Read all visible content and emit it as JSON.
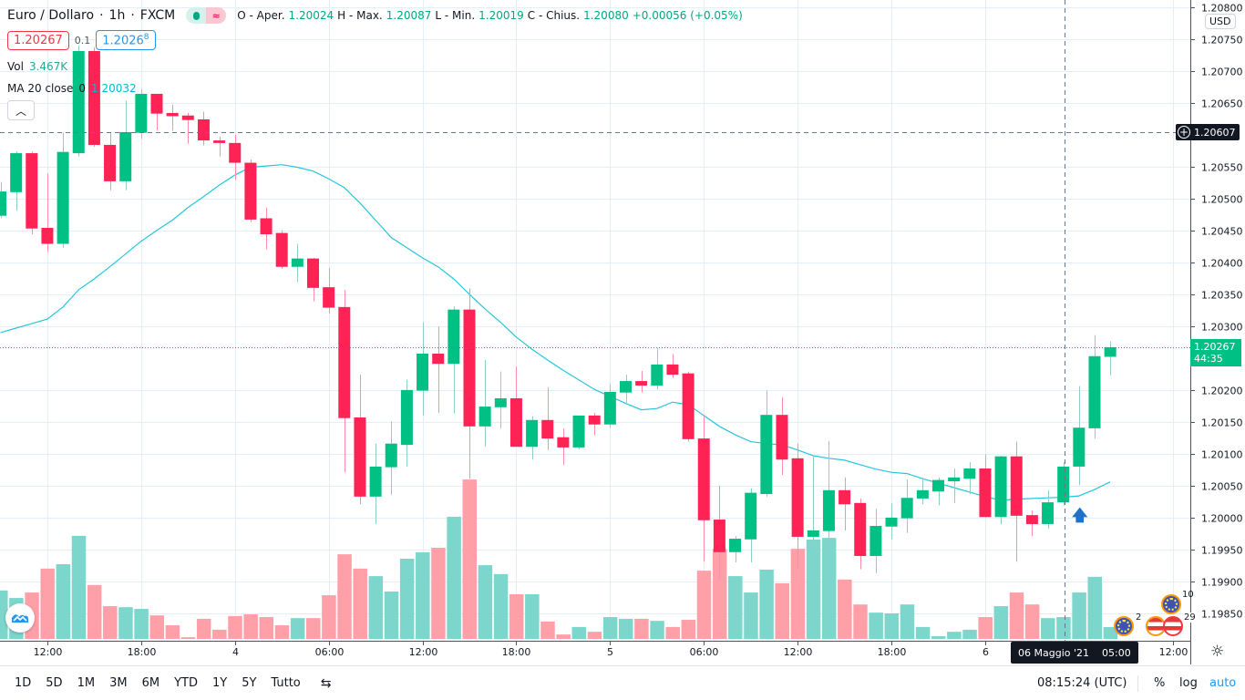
{
  "header": {
    "symbol": "Euro / Dollaro",
    "interval": "1h",
    "source": "FXCM",
    "ohlc": [
      {
        "label": "O - Aper.",
        "value": "1.20024"
      },
      {
        "label": "H - Max.",
        "value": "1.20087"
      },
      {
        "label": "L - Min.",
        "value": "1.20019"
      },
      {
        "label": "C - Chius.",
        "value": "1.20080"
      }
    ],
    "change": "+0.00056 (+0.05%)"
  },
  "quote": {
    "bid": "1.20267",
    "spread": "0.1",
    "ask_main": "1.2026",
    "ask_sup": "8"
  },
  "indicators": {
    "vol_label": "Vol",
    "vol_value": "3.467K",
    "ma_label": "MA 20 close",
    "ma_offset": "0",
    "ma_value": "1.20032"
  },
  "price_axis": {
    "currency": "USD",
    "crosshair_price": "1.20607",
    "last_price": "1.20267",
    "countdown": "44:35"
  },
  "time_axis": {
    "crosshair_date": "06 Maggio '21",
    "crosshair_time": "05:00"
  },
  "events": [
    {
      "type": "eu-flag-icon",
      "count": "2"
    },
    {
      "type": "eu-flag-icon",
      "count": "10"
    },
    {
      "type": "us-flag-icon",
      "count": ""
    },
    {
      "type": "us-flag-icon",
      "count": "29"
    }
  ],
  "toolbar": {
    "ranges": [
      "1D",
      "5D",
      "1M",
      "3M",
      "6M",
      "YTD",
      "1Y",
      "5Y",
      "Tutto"
    ],
    "clock": "08:15:24 (UTC)",
    "percent": "%",
    "log": "log",
    "auto": "auto"
  },
  "colors": {
    "up": "#00c084",
    "down": "#ff2255",
    "vol_up": "#7dd6cc",
    "vol_down": "#ffa0a8",
    "ma": "#26c6da",
    "grid": "#e6eef5",
    "accent": "#2196f3"
  },
  "chart_data": {
    "type": "candlestick",
    "ylim": [
      1.1981,
      1.20811
    ],
    "grid": true,
    "y_ticks": [
      "1.20800",
      "1.20750",
      "1.20700",
      "1.20650",
      "1.20550",
      "1.20500",
      "1.20450",
      "1.20400",
      "1.20350",
      "1.20300",
      "1.20200",
      "1.20150",
      "1.20100",
      "1.20050",
      "1.20000",
      "1.19950",
      "1.19900",
      "1.19850"
    ],
    "x_ticks": [
      {
        "label": "12:00",
        "time": "2021-05-03 12:00"
      },
      {
        "label": "18:00",
        "time": "2021-05-03 18:00"
      },
      {
        "label": "4",
        "time": "2021-05-04 00:00"
      },
      {
        "label": "06:00",
        "time": "2021-05-04 06:00"
      },
      {
        "label": "12:00",
        "time": "2021-05-04 12:00"
      },
      {
        "label": "18:00",
        "time": "2021-05-04 18:00"
      },
      {
        "label": "5",
        "time": "2021-05-05 00:00"
      },
      {
        "label": "06:00",
        "time": "2021-05-05 06:00"
      },
      {
        "label": "12:00",
        "time": "2021-05-05 12:00"
      },
      {
        "label": "18:00",
        "time": "2021-05-05 18:00"
      },
      {
        "label": "6",
        "time": "2021-05-06 00:00"
      },
      {
        "label": "12:00",
        "time": "2021-05-06 12:00"
      }
    ],
    "columns": [
      "time",
      "open",
      "high",
      "low",
      "close",
      "volume_k",
      "ma20"
    ],
    "candles": [
      [
        "2021-05-03 09:00",
        1.20473,
        1.20526,
        1.20469,
        1.20511,
        14.2,
        1.2029
      ],
      [
        "2021-05-03 10:00",
        1.2051,
        1.20574,
        1.20481,
        1.20571,
        12.0,
        1.20297
      ],
      [
        "2021-05-03 11:00",
        1.20571,
        1.20574,
        1.20444,
        1.20453,
        13.6,
        1.20304
      ],
      [
        "2021-05-03 12:00",
        1.20454,
        1.20539,
        1.20416,
        1.20429,
        20.6,
        1.20311
      ],
      [
        "2021-05-03 13:00",
        1.20429,
        1.20603,
        1.20423,
        1.20573,
        21.9,
        1.2033
      ],
      [
        "2021-05-03 14:00",
        1.20571,
        1.2074,
        1.20566,
        1.20731,
        30.2,
        1.20357
      ],
      [
        "2021-05-03 15:00",
        1.20731,
        1.20737,
        1.20581,
        1.20584,
        15.8,
        1.20374
      ],
      [
        "2021-05-03 16:00",
        1.20584,
        1.20603,
        1.20513,
        1.20527,
        9.6,
        1.20393
      ],
      [
        "2021-05-03 17:00",
        1.20527,
        1.20653,
        1.20513,
        1.20604,
        9.3,
        1.20413
      ],
      [
        "2021-05-03 18:00",
        1.20603,
        1.20671,
        1.20593,
        1.20664,
        8.8,
        1.20433
      ],
      [
        "2021-05-03 19:00",
        1.20664,
        1.20664,
        1.20607,
        1.20633,
        6.9,
        1.2045
      ],
      [
        "2021-05-03 20:00",
        1.20634,
        1.20647,
        1.20606,
        1.20629,
        4.0,
        1.20466
      ],
      [
        "2021-05-03 21:00",
        1.2063,
        1.20634,
        1.20586,
        1.20623,
        0.5,
        1.20486
      ],
      [
        "2021-05-03 22:00",
        1.20624,
        1.20636,
        1.20583,
        1.20591,
        5.9,
        1.20503
      ],
      [
        "2021-05-03 23:00",
        1.20591,
        1.20597,
        1.20566,
        1.20587,
        2.7,
        1.20521
      ],
      [
        "2021-05-04 00:00",
        1.20587,
        1.206,
        1.20529,
        1.20556,
        6.7,
        1.20537
      ],
      [
        "2021-05-04 01:00",
        1.20556,
        1.20561,
        1.20463,
        1.20467,
        7.2,
        1.20549
      ],
      [
        "2021-05-04 02:00",
        1.20469,
        1.20486,
        1.2042,
        1.20444,
        6.4,
        1.20551
      ],
      [
        "2021-05-04 03:00",
        1.20446,
        1.2045,
        1.2039,
        1.20393,
        4.0,
        1.20553
      ],
      [
        "2021-05-04 04:00",
        1.20393,
        1.20429,
        1.20369,
        1.20406,
        6.1,
        1.20549
      ],
      [
        "2021-05-04 05:00",
        1.20406,
        1.20407,
        1.20339,
        1.2036,
        6.1,
        1.20543
      ],
      [
        "2021-05-04 06:00",
        1.20361,
        1.20391,
        1.2032,
        1.20329,
        12.8,
        1.20531
      ],
      [
        "2021-05-04 07:00",
        1.2033,
        1.20357,
        1.20071,
        1.20156,
        24.8,
        1.20517
      ],
      [
        "2021-05-04 08:00",
        1.20157,
        1.20224,
        1.20021,
        1.20033,
        20.6,
        1.20493
      ],
      [
        "2021-05-04 09:00",
        1.20033,
        1.20116,
        1.1999,
        1.2008,
        18.4,
        1.20466
      ],
      [
        "2021-05-04 10:00",
        1.20079,
        1.20151,
        1.20036,
        1.20116,
        13.9,
        1.20439
      ],
      [
        "2021-05-04 11:00",
        1.20114,
        1.20216,
        1.2008,
        1.202,
        23.5,
        1.20423
      ],
      [
        "2021-05-04 12:00",
        1.20199,
        1.20306,
        1.2016,
        1.20257,
        25.4,
        1.20407
      ],
      [
        "2021-05-04 13:00",
        1.20257,
        1.20299,
        1.20164,
        1.20241,
        26.7,
        1.20393
      ],
      [
        "2021-05-04 14:00",
        1.20241,
        1.20331,
        1.20164,
        1.20326,
        35.8,
        1.20374
      ],
      [
        "2021-05-04 15:00",
        1.20326,
        1.20359,
        1.20061,
        1.20143,
        46.7,
        1.2035
      ],
      [
        "2021-05-04 16:00",
        1.20143,
        1.20247,
        1.20111,
        1.20174,
        21.6,
        1.20327
      ],
      [
        "2021-05-04 17:00",
        1.20173,
        1.20229,
        1.2014,
        1.20187,
        19.0,
        1.20306
      ],
      [
        "2021-05-04 18:00",
        1.20187,
        1.20237,
        1.20111,
        1.20111,
        13.1,
        1.20283
      ],
      [
        "2021-05-04 19:00",
        1.20111,
        1.20159,
        1.20091,
        1.20153,
        13.1,
        1.20264
      ],
      [
        "2021-05-04 20:00",
        1.20153,
        1.20204,
        1.20106,
        1.20124,
        5.1,
        1.20247
      ],
      [
        "2021-05-04 21:00",
        1.20126,
        1.2014,
        1.20083,
        1.2011,
        1.3,
        1.20231
      ],
      [
        "2021-05-04 22:00",
        1.2011,
        1.2016,
        1.20107,
        1.2016,
        3.5,
        1.20216
      ],
      [
        "2021-05-04 23:00",
        1.2016,
        1.20164,
        1.20129,
        1.20146,
        2.1,
        1.20201
      ],
      [
        "2021-05-05 00:00",
        1.20146,
        1.20209,
        1.20141,
        1.20197,
        6.4,
        1.2019
      ],
      [
        "2021-05-05 01:00",
        1.20196,
        1.20224,
        1.2018,
        1.20214,
        5.9,
        1.20179
      ],
      [
        "2021-05-05 02:00",
        1.20214,
        1.2023,
        1.20196,
        1.20207,
        5.9,
        1.20169
      ],
      [
        "2021-05-05 03:00",
        1.20207,
        1.20266,
        1.20201,
        1.2024,
        5.3,
        1.20171
      ],
      [
        "2021-05-05 04:00",
        1.2024,
        1.20256,
        1.20219,
        1.20224,
        3.5,
        1.20181
      ],
      [
        "2021-05-05 05:00",
        1.20226,
        1.20229,
        1.20119,
        1.20123,
        5.6,
        1.20177
      ],
      [
        "2021-05-05 06:00",
        1.20124,
        1.20161,
        1.19931,
        1.19996,
        20.0,
        1.2016
      ],
      [
        "2021-05-05 07:00",
        1.19997,
        1.2005,
        1.19904,
        1.19946,
        26.4,
        1.20143
      ],
      [
        "2021-05-05 08:00",
        1.19946,
        1.19971,
        1.1993,
        1.19967,
        18.4,
        1.2013
      ],
      [
        "2021-05-05 09:00",
        1.19966,
        1.20046,
        1.1993,
        1.20039,
        13.6,
        1.20119
      ],
      [
        "2021-05-05 10:00",
        1.20037,
        1.20199,
        1.20033,
        1.20161,
        20.3,
        1.20116
      ],
      [
        "2021-05-05 11:00",
        1.20161,
        1.20189,
        1.20067,
        1.20091,
        16.3,
        1.20114
      ],
      [
        "2021-05-05 12:00",
        1.20093,
        1.20116,
        1.19919,
        1.1997,
        26.4,
        1.20106
      ],
      [
        "2021-05-05 13:00",
        1.1997,
        1.20097,
        1.19947,
        1.1998,
        29.1,
        1.20097
      ],
      [
        "2021-05-05 14:00",
        1.19979,
        1.2012,
        1.19937,
        1.20043,
        29.6,
        1.20093
      ],
      [
        "2021-05-05 15:00",
        1.20043,
        1.20063,
        1.1998,
        1.20021,
        17.4,
        1.2009
      ],
      [
        "2021-05-05 16:00",
        1.20023,
        1.2003,
        1.19919,
        1.1994,
        10.1,
        1.20083
      ],
      [
        "2021-05-05 17:00",
        1.1994,
        1.20014,
        1.19913,
        1.19987,
        7.7,
        1.20076
      ],
      [
        "2021-05-05 18:00",
        1.19986,
        1.20023,
        1.19966,
        1.2,
        7.5,
        1.20071
      ],
      [
        "2021-05-05 19:00",
        1.19999,
        1.2006,
        1.19976,
        1.20031,
        10.1,
        1.20069
      ],
      [
        "2021-05-05 20:00",
        1.2003,
        1.20063,
        1.20021,
        1.20043,
        3.5,
        1.20061
      ],
      [
        "2021-05-05 21:00",
        1.20041,
        1.20063,
        1.20019,
        1.20059,
        0.8,
        1.20054
      ],
      [
        "2021-05-05 22:00",
        1.20057,
        1.20077,
        1.20023,
        1.20063,
        2.1,
        1.20047
      ],
      [
        "2021-05-05 23:00",
        1.20061,
        1.20087,
        1.20037,
        1.20077,
        2.7,
        1.2004
      ],
      [
        "2021-05-06 00:00",
        1.20077,
        1.20099,
        1.20001,
        1.20001,
        6.4,
        1.20033
      ],
      [
        "2021-05-06 01:00",
        1.20001,
        1.20097,
        1.1999,
        1.20096,
        9.6,
        1.20027
      ],
      [
        "2021-05-06 02:00",
        1.20096,
        1.20119,
        1.19931,
        1.20003,
        13.6,
        1.20029
      ],
      [
        "2021-05-06 03:00",
        1.20004,
        1.20011,
        1.19971,
        1.1999,
        10.1,
        1.2003
      ],
      [
        "2021-05-06 04:00",
        1.1999,
        1.20043,
        1.19983,
        1.20024,
        6.1,
        1.20031
      ],
      [
        "2021-05-06 05:00",
        1.20024,
        1.20087,
        1.20019,
        1.2008,
        6.4,
        1.20032
      ],
      [
        "2021-05-06 06:00",
        1.2008,
        1.20206,
        1.20051,
        1.20141,
        13.6,
        1.20034
      ],
      [
        "2021-05-06 07:00",
        1.2014,
        1.20286,
        1.20124,
        1.20253,
        18.2,
        1.20044
      ],
      [
        "2021-05-06 08:00",
        1.20252,
        1.20276,
        1.20223,
        1.20267,
        3.467,
        1.20056
      ]
    ]
  }
}
